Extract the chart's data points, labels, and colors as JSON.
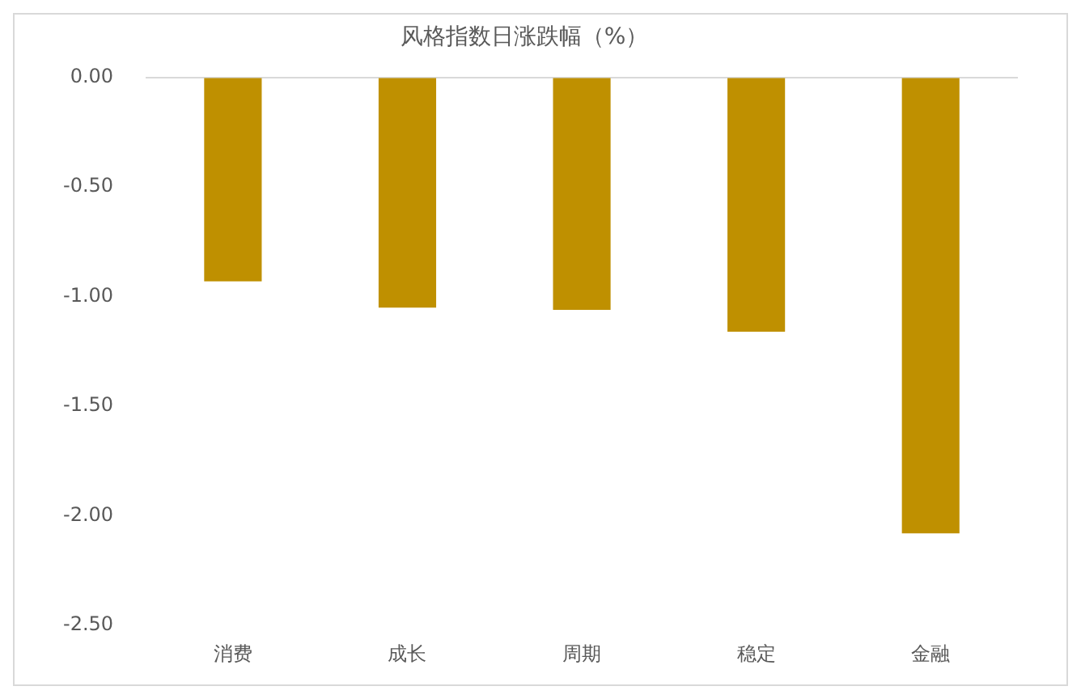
{
  "chart_data": {
    "type": "bar",
    "title": "风格指数日涨跌幅（%）",
    "categories": [
      "消费",
      "成长",
      "周期",
      "稳定",
      "金融"
    ],
    "values": [
      -0.93,
      -1.05,
      -1.06,
      -1.16,
      -2.08
    ],
    "color": "#bf9000",
    "ylim": [
      -2.5,
      0
    ],
    "yticks": [
      {
        "value": 0,
        "label": "0.00"
      },
      {
        "value": -0.5,
        "label": "-0.50"
      },
      {
        "value": -1,
        "label": "-1.00"
      },
      {
        "value": -1.5,
        "label": "-1.50"
      },
      {
        "value": -2,
        "label": "-2.00"
      },
      {
        "value": -2.5,
        "label": "-2.50"
      }
    ],
    "grid": false,
    "legend": false
  }
}
